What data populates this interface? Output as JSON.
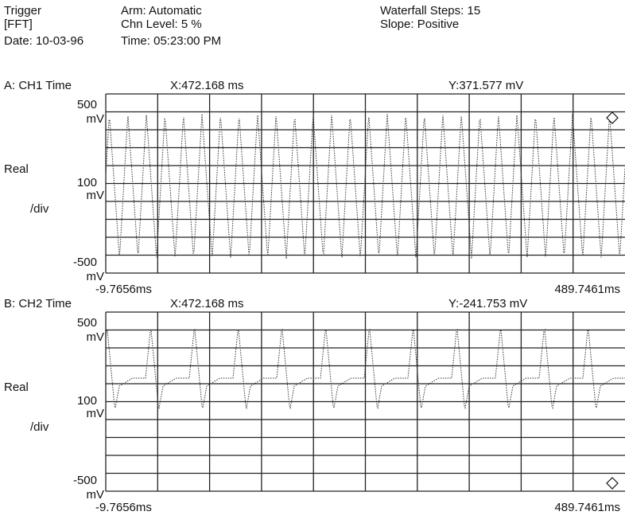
{
  "header": {
    "trigger": "Trigger",
    "mode": "[FFT]",
    "date": "Date: 10-03-96",
    "arm": "Arm: Automatic",
    "chn_level": "Chn Level: 5 %",
    "time": "Time: 05:23:00 PM",
    "waterfall": "Waterfall Steps: 15",
    "slope": "Slope: Positive"
  },
  "panels": [
    {
      "title": "A: CH1 Time",
      "x_readout": "X:472.168 ms",
      "y_readout": "Y:371.577 mV",
      "y_top": "500",
      "y_top_unit": "mV",
      "mode": "Real",
      "scale": "100",
      "scale_unit": "mV",
      "scale_per": "/div",
      "y_bottom": "-500",
      "y_bottom_unit": "mV",
      "x_start": "-9.7656ms",
      "x_end": "489.7461ms"
    },
    {
      "title": "B: CH2 Time",
      "x_readout": "X:472.168 ms",
      "y_readout": "Y:-241.753 mV",
      "y_top": "500",
      "y_top_unit": "mV",
      "mode": "Real",
      "scale": "100",
      "scale_unit": "mV",
      "scale_per": "/div",
      "y_bottom": "-500",
      "y_bottom_unit": "mV",
      "x_start": "-9.7656ms",
      "x_end": "489.7461ms"
    }
  ]
}
